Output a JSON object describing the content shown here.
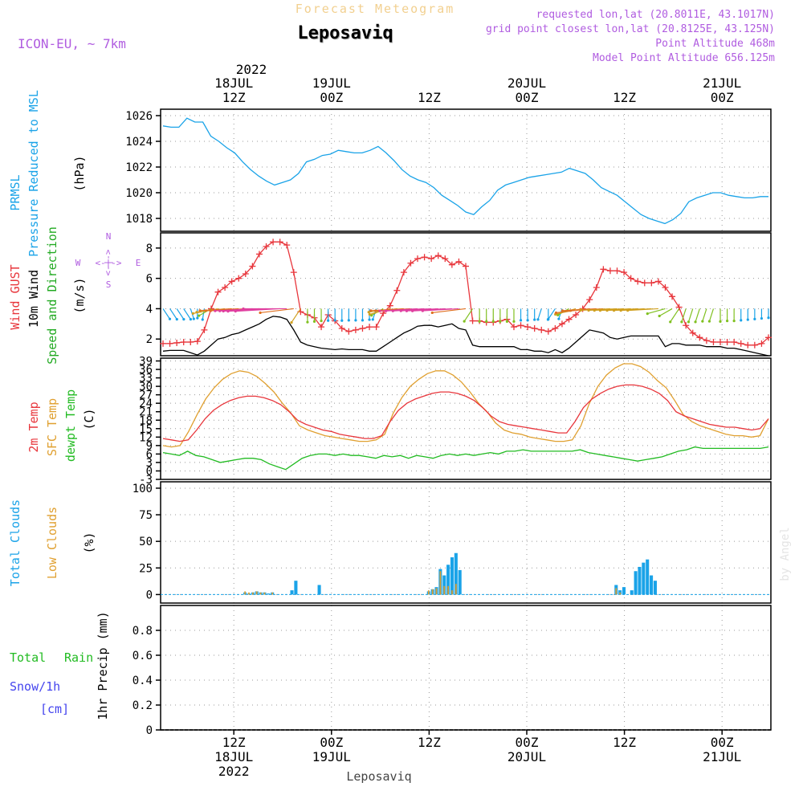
{
  "header": {
    "product": "Forecast Meteogram",
    "location": "Leposaviq",
    "model": "ICON-EU, ~ 7km",
    "requested": "requested lon,lat (20.8011E, 43.1017N)",
    "grid": "grid point closest lon,lat (20.8125E, 43.125N)",
    "point_alt": "Point Altitude 468m",
    "model_alt": "Model Point Altitude 656.125m",
    "footer_location": "Leposaviq",
    "watermark": "by Angel"
  },
  "colors": {
    "pressure": "#1aa3e8",
    "gust": "#e8363c",
    "wind": "#000000",
    "winddir": "#22aa22",
    "t2m": "#e8363c",
    "sfc": "#e0a030",
    "dewpt": "#22bb22",
    "total_cloud": "#1aa3e8",
    "low_cloud": "#e0a030",
    "rain": "#22bb22",
    "snow": "#4444ee",
    "compass": "#b05ce0",
    "header_info": "#b05ce0"
  },
  "chart_data": {
    "x_axis": {
      "start": "2022-07-18T03:00Z",
      "end": "2022-07-21T06:00Z",
      "top_year": "2022",
      "top_labels": [
        {
          "l1": "18JUL",
          "l2": "12Z"
        },
        {
          "l1": "19JUL",
          "l2": "00Z"
        },
        {
          "l1": "",
          "l2": "12Z"
        },
        {
          "l1": "20JUL",
          "l2": "00Z"
        },
        {
          "l1": "",
          "l2": "12Z"
        },
        {
          "l1": "21JUL",
          "l2": "00Z"
        }
      ],
      "bottom_labels": [
        {
          "l1": "12Z",
          "l2": "18JUL",
          "l3": "2022"
        },
        {
          "l1": "00Z",
          "l2": "19JUL",
          "l3": ""
        },
        {
          "l1": "12Z",
          "l2": "",
          "l3": ""
        },
        {
          "l1": "00Z",
          "l2": "20JUL",
          "l3": ""
        },
        {
          "l1": "12Z",
          "l2": "",
          "l3": ""
        },
        {
          "l1": "00Z",
          "l2": "21JUL",
          "l3": ""
        }
      ]
    },
    "pressure": {
      "type": "line",
      "labels": [
        "PRMSL",
        "Pressure Reduced to MSL"
      ],
      "unit": "(hPa)",
      "ylim": [
        1017,
        1026.5
      ],
      "yticks": [
        1018,
        1020,
        1022,
        1024,
        1026
      ],
      "values": [
        1025.2,
        1025.1,
        1025.1,
        1025.8,
        1025.5,
        1025.5,
        1024.4,
        1024,
        1023.5,
        1023.1,
        1022.4,
        1021.8,
        1021.3,
        1020.9,
        1020.6,
        1020.8,
        1021,
        1021.5,
        1022.4,
        1022.6,
        1022.9,
        1023,
        1023.3,
        1023.2,
        1023.1,
        1023.1,
        1023.3,
        1023.6,
        1023.1,
        1022.5,
        1021.8,
        1021.3,
        1021,
        1020.8,
        1020.4,
        1019.8,
        1019.4,
        1019,
        1018.5,
        1018.3,
        1018.9,
        1019.4,
        1020.2,
        1020.6,
        1020.8,
        1021,
        1021.2,
        1021.3,
        1021.4,
        1021.5,
        1021.6,
        1021.9,
        1021.7,
        1021.5,
        1021,
        1020.4,
        1020.1,
        1019.8,
        1019.3,
        1018.8,
        1018.3,
        1018,
        1017.8,
        1017.6,
        1017.9,
        1018.4,
        1019.3,
        1019.6,
        1019.8,
        1020,
        1020,
        1019.8,
        1019.7,
        1019.6,
        1019.6,
        1019.7,
        1019.7
      ]
    },
    "wind": {
      "type": "line",
      "labels": [
        "Wind GUST",
        "10m Wind",
        "Speed and Direction"
      ],
      "unit": "(m/s)",
      "compass": {
        "n": "N",
        "s": "S",
        "e": "E",
        "w": "W",
        "arrow": "<-|->"
      },
      "ylim": [
        0.9,
        9
      ],
      "yticks": [
        2,
        4,
        6,
        8
      ],
      "gust": [
        1.7,
        1.7,
        1.75,
        1.8,
        1.8,
        1.85,
        2.6,
        4,
        5.1,
        5.4,
        5.8,
        6,
        6.3,
        6.8,
        7.6,
        8.1,
        8.4,
        8.4,
        8.2,
        6.4,
        3.8,
        3.6,
        3.4,
        2.8,
        3.6,
        3.2,
        2.7,
        2.5,
        2.6,
        2.7,
        2.8,
        2.8,
        3.7,
        4.2,
        5.2,
        6.4,
        7,
        7.3,
        7.4,
        7.3,
        7.5,
        7.3,
        6.9,
        7.1,
        6.8,
        3.2,
        3.2,
        3.1,
        3.1,
        3.2,
        3.3,
        2.8,
        2.9,
        2.8,
        2.7,
        2.6,
        2.5,
        2.7,
        3,
        3.3,
        3.6,
        4,
        4.6,
        5.4,
        6.6,
        6.5,
        6.5,
        6.4,
        6,
        5.8,
        5.7,
        5.7,
        5.8,
        5.4,
        4.8,
        4.1,
        2.9,
        2.4,
        2.1,
        1.9,
        1.8,
        1.8,
        1.8,
        1.8,
        1.7,
        1.6,
        1.6,
        1.7,
        2.1
      ],
      "speed": [
        1.2,
        1.25,
        1.25,
        1.25,
        1.1,
        0.95,
        1.2,
        1.6,
        2,
        2.1,
        2.3,
        2.4,
        2.6,
        2.8,
        3,
        3.3,
        3.5,
        3.45,
        3.3,
        2.6,
        1.8,
        1.6,
        1.5,
        1.4,
        1.35,
        1.3,
        1.35,
        1.3,
        1.3,
        1.3,
        1.2,
        1.2,
        1.5,
        1.8,
        2.1,
        2.4,
        2.6,
        2.85,
        2.9,
        2.9,
        2.8,
        2.9,
        3,
        2.7,
        2.6,
        1.6,
        1.5,
        1.5,
        1.5,
        1.5,
        1.5,
        1.5,
        1.3,
        1.3,
        1.2,
        1.2,
        1.1,
        1.3,
        1.1,
        1.4,
        1.8,
        2.2,
        2.6,
        2.5,
        2.4,
        2.1,
        2,
        2.1,
        2.2,
        2.2,
        2.2,
        2.2,
        2.2,
        1.5,
        1.7,
        1.7,
        1.6,
        1.6,
        1.6,
        1.5,
        1.5,
        1.5,
        1.4,
        1.4,
        1.3,
        1.2,
        1.1,
        1,
        0.9
      ],
      "dir_speed": [
        1.2,
        1.25,
        1.25,
        1.25,
        1.1,
        0.95,
        1.2,
        1.6,
        2,
        2.1,
        2.3,
        2.4,
        2.6,
        2.8,
        3,
        3.3,
        3.5,
        3.45,
        3.3,
        2.6,
        1.8,
        1.6,
        1.5,
        1.4,
        1.35,
        1.3,
        1.35,
        1.3,
        1.3,
        1.3,
        1.2,
        1.2,
        1.5,
        1.8,
        2.1,
        2.4,
        2.6,
        2.85,
        2.9,
        2.9,
        2.8,
        2.9,
        3,
        2.7,
        2.6,
        1.6,
        1.5,
        1.5,
        1.5,
        1.5,
        1.5,
        1.5,
        1.3,
        1.3,
        1.2,
        1.2,
        1.1,
        1.3,
        1.1,
        1.4,
        1.8,
        2.2,
        2.6,
        2.5,
        2.4,
        2.1,
        2,
        2.1,
        2.2,
        2.2,
        2.2,
        2.2,
        2.2,
        1.5,
        1.7,
        1.7,
        1.6,
        1.6,
        1.6,
        1.5,
        1.5,
        1.5,
        1.4,
        1.4,
        1.3,
        1.2,
        1.1,
        1,
        0.9
      ],
      "dir_angle": [
        200,
        200,
        200,
        200,
        190,
        180,
        175,
        150,
        120,
        110,
        100,
        100,
        100,
        100,
        100,
        100,
        100,
        100,
        90,
        110,
        160,
        180,
        180,
        180,
        180,
        180,
        180,
        180,
        180,
        180,
        180,
        170,
        150,
        130,
        110,
        100,
        100,
        100,
        100,
        100,
        100,
        100,
        100,
        100,
        110,
        160,
        180,
        180,
        180,
        180,
        180,
        180,
        180,
        180,
        180,
        170,
        180,
        160,
        170,
        150,
        130,
        120,
        110,
        100,
        100,
        100,
        100,
        100,
        100,
        100,
        100,
        100,
        100,
        130,
        150,
        160,
        170,
        170,
        170,
        170,
        170,
        180,
        180,
        180,
        180,
        180,
        180,
        180,
        180
      ]
    },
    "temperature": {
      "type": "line",
      "labels": [
        "2m Temp",
        "SFC Temp",
        "dewpt Temp"
      ],
      "unit": "(C)",
      "ylim": [
        -3,
        40
      ],
      "yticks": [
        -3,
        0,
        3,
        6,
        9,
        12,
        15,
        18,
        21,
        24,
        27,
        30,
        33,
        36,
        39
      ],
      "t2m": [
        11.5,
        11,
        10.5,
        11,
        14.5,
        18.5,
        21.5,
        23.5,
        25,
        26,
        26.5,
        26.5,
        26,
        25,
        23.5,
        21,
        18,
        16.5,
        15.5,
        14.5,
        14,
        13,
        12.5,
        12,
        11.5,
        11.5,
        12.5,
        17.5,
        21.5,
        24,
        25.5,
        26.5,
        27.5,
        28,
        28,
        27.5,
        26.5,
        25,
        22.5,
        19.5,
        17.5,
        16.5,
        16,
        15.5,
        15,
        14.5,
        14,
        13.5,
        13.5,
        17.5,
        22.5,
        25.5,
        27.5,
        29,
        30,
        30.5,
        30.5,
        30,
        29,
        27.5,
        25,
        21,
        19.5,
        18.5,
        17.5,
        16.5,
        16,
        15.5,
        15.5,
        15,
        14.5,
        15,
        18.5
      ],
      "sfc": [
        9,
        8.5,
        9,
        14,
        20,
        25.5,
        29.5,
        32.5,
        34.5,
        35.5,
        35,
        33.5,
        31,
        28,
        24,
        20.5,
        16,
        14.5,
        13.5,
        12.5,
        12,
        11.5,
        11,
        10.5,
        10.5,
        11,
        13,
        20.5,
        26,
        30,
        32.5,
        34.5,
        35.5,
        35.5,
        34,
        31.5,
        28,
        24,
        21,
        17,
        14.5,
        13.5,
        13,
        12,
        11.5,
        11,
        10.5,
        10.5,
        11,
        16,
        24,
        30,
        34,
        36.5,
        38,
        38,
        37,
        35,
        32,
        29.5,
        25,
        20,
        17.5,
        16,
        15,
        14,
        13,
        12.5,
        12.5,
        12,
        12.5,
        18.5
      ],
      "dewpt": [
        6.5,
        6,
        5.5,
        7,
        5.5,
        5,
        4,
        3,
        3.5,
        4,
        4.5,
        4.5,
        4,
        2.5,
        1.5,
        0.5,
        2.5,
        4.5,
        5.5,
        6,
        6,
        5.5,
        6,
        5.5,
        5.5,
        5,
        4.5,
        5.5,
        5,
        5.5,
        4.5,
        5.5,
        5,
        4.5,
        5.5,
        6,
        5.5,
        6,
        5.5,
        6,
        6.5,
        6,
        7,
        7,
        7.5,
        7,
        7,
        7,
        7,
        7,
        7,
        7.5,
        6.5,
        6,
        5.5,
        5,
        4.5,
        4,
        3.5,
        4,
        4.5,
        5,
        6,
        7,
        7.5,
        8.5,
        8,
        8,
        8,
        8,
        8,
        8,
        8,
        8,
        8.5
      ]
    },
    "clouds": {
      "type": "bar",
      "labels": [
        "Total Clouds",
        "Low Clouds"
      ],
      "unit": "(%)",
      "ylim": [
        -8,
        106
      ],
      "yticks": [
        0,
        25,
        50,
        75,
        100
      ],
      "total": [
        0,
        0,
        0,
        0,
        0,
        0,
        0,
        0,
        0,
        0,
        0,
        0,
        0,
        0,
        0,
        0,
        0,
        0,
        0,
        0,
        0,
        2,
        1,
        2,
        3,
        2,
        2,
        1,
        2,
        0,
        0,
        0,
        0,
        4,
        13,
        0,
        0,
        0,
        0,
        0,
        9,
        0,
        0,
        0,
        0,
        0,
        0,
        0,
        0,
        0,
        0,
        0,
        0,
        0,
        0,
        0,
        0,
        0,
        0,
        0,
        0,
        0,
        0,
        0,
        0,
        0,
        0,
        0,
        3,
        5,
        7,
        24,
        18,
        28,
        35,
        39,
        23,
        0,
        0,
        0,
        0,
        0,
        0,
        0,
        0,
        0,
        0,
        0,
        0,
        0,
        0,
        0,
        0,
        0,
        0,
        0,
        0,
        0,
        0,
        0,
        0,
        0,
        0,
        0,
        0,
        0,
        0,
        0,
        0,
        0,
        0,
        0,
        0,
        0,
        0,
        0,
        9,
        4,
        7,
        0,
        4,
        22,
        26,
        30,
        33,
        18,
        13,
        0,
        0,
        0,
        0,
        0,
        0,
        0,
        0,
        0,
        0,
        0,
        0,
        0,
        0,
        0,
        0,
        0,
        0,
        0,
        0,
        0,
        0,
        0,
        0,
        0,
        0,
        0,
        0,
        0
      ],
      "low": [
        0,
        0,
        0,
        0,
        0,
        0,
        0,
        0,
        0,
        0,
        0,
        0,
        0,
        0,
        0,
        0,
        0,
        0,
        0,
        0,
        0,
        3,
        2,
        2,
        3,
        2,
        2,
        0,
        2,
        0,
        0,
        0,
        0,
        0,
        0,
        0,
        0,
        0,
        0,
        0,
        0,
        0,
        0,
        0,
        0,
        0,
        0,
        0,
        0,
        0,
        0,
        0,
        0,
        0,
        0,
        0,
        0,
        0,
        0,
        0,
        0,
        0,
        0,
        0,
        0,
        0,
        0,
        0,
        4,
        5,
        6,
        22,
        8,
        8,
        4,
        10,
        0,
        0,
        0,
        0,
        0,
        0,
        0,
        0,
        0,
        0,
        0,
        0,
        0,
        0,
        0,
        0,
        0,
        0,
        0,
        0,
        0,
        0,
        0,
        0,
        0,
        0,
        0,
        0,
        0,
        0,
        0,
        0,
        0,
        0,
        0,
        0,
        0,
        0,
        0,
        0,
        6,
        2,
        0,
        0,
        0,
        0,
        0,
        0,
        0,
        0,
        0,
        0,
        0,
        0,
        0,
        0,
        0,
        0,
        0,
        0,
        0,
        0,
        0,
        0,
        0,
        0,
        0,
        0,
        0,
        0,
        0,
        0,
        0,
        0,
        0,
        0,
        0,
        0,
        0,
        0
      ]
    },
    "precip": {
      "type": "line",
      "labels": [
        "Total",
        "Rain",
        "Snow/1h",
        "[cm]",
        "1hr Precip (mm)"
      ],
      "ylim": [
        0,
        1
      ],
      "yticks": [
        0,
        0.2,
        0.4,
        0.6,
        0.8
      ],
      "tick_labels": [
        "0",
        "0.2",
        "0.4",
        "0.6",
        "0.8"
      ],
      "values": []
    }
  }
}
